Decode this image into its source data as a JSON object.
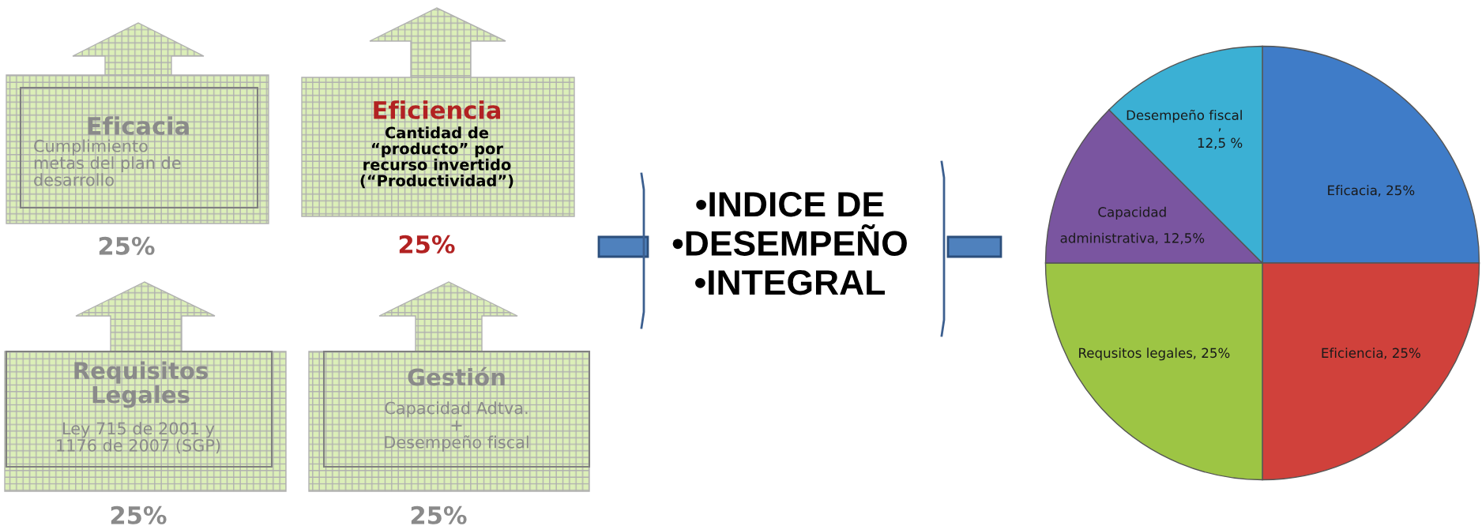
{
  "chart_data": [
    {
      "type": "other",
      "annotations": [
        "Eficacia",
        "Cumplimiento\nmetas del plan de\ndesarrollo",
        "25%",
        "Eficiencia",
        "Cantidad de\n“producto” por\nrecurso invertido\n(“Productividad”)",
        "25%",
        "Requisitos\nLegales",
        "Ley 715 de 2001 y\n1176 de 2007 (SGP)",
        "25%",
        "Gestión",
        "Capacidad Adtva.\n+\nDesempeño fiscal",
        "25%"
      ]
    },
    {
      "type": "pie",
      "title": "•INDICE DE\n•DESEMPEÑO\n•INTEGRAL",
      "categories": [
        "Eficacia",
        "Eficiencia",
        "Requsitos legales",
        "Capacidad administrativa",
        "Desempeño fiscal"
      ],
      "values": [
        25,
        25,
        25,
        12.5,
        12.5
      ],
      "colors": [
        "#3f7cc8",
        "#d0413b",
        "#9dc544",
        "#7a55a0",
        "#3bb0d4"
      ],
      "value_labels": [
        ", 25%",
        ", 25%",
        ", 25%",
        ", 12,5%",
        ",\n12,5 %"
      ]
    }
  ]
}
